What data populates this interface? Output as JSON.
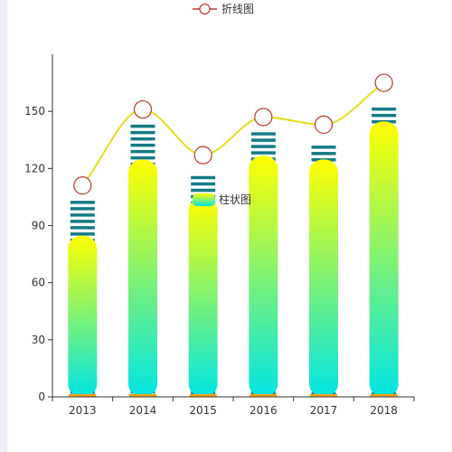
{
  "chart_data": {
    "type": "bar",
    "categories": [
      "2013",
      "2014",
      "2015",
      "2016",
      "2017",
      "2018"
    ],
    "series": [
      {
        "name": "柱状图",
        "type": "bar",
        "values": [
          80,
          120,
          100,
          122,
          120,
          140
        ]
      },
      {
        "name": "",
        "type": "bar-stripes",
        "values": [
          103,
          143,
          116,
          139,
          132,
          152
        ]
      },
      {
        "name": "折线图",
        "type": "line",
        "smooth": true,
        "values": [
          111,
          151,
          127,
          147,
          143,
          165
        ]
      }
    ],
    "title": "",
    "xlabel": "",
    "ylabel": "",
    "ylim": [
      0,
      180
    ],
    "yticks": [
      0,
      30,
      60,
      90,
      120,
      150
    ],
    "grid": false,
    "legend": [
      {
        "name": "折线图",
        "placement": "top-center"
      },
      {
        "name": "柱状图",
        "placement": "center"
      }
    ],
    "colors": {
      "bar_top": "#ffff00",
      "bar_bottom": "#00e5e5",
      "stripes": "#137b87",
      "line": "#e8dc1e",
      "marker_stroke": "#c23531",
      "marker_fill": "#ffffff",
      "base": "#f4a10f",
      "axis": "#333333"
    }
  }
}
